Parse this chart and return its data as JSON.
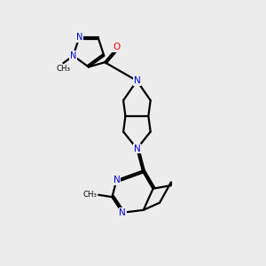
{
  "bg_color": "#ececec",
  "bond_color": "#000000",
  "N_color": "#0000cc",
  "O_color": "#ff0000",
  "line_width": 1.6,
  "figsize": [
    3.0,
    3.0
  ],
  "dpi": 100,
  "xlim": [
    0,
    10
  ],
  "ylim": [
    0,
    10
  ]
}
